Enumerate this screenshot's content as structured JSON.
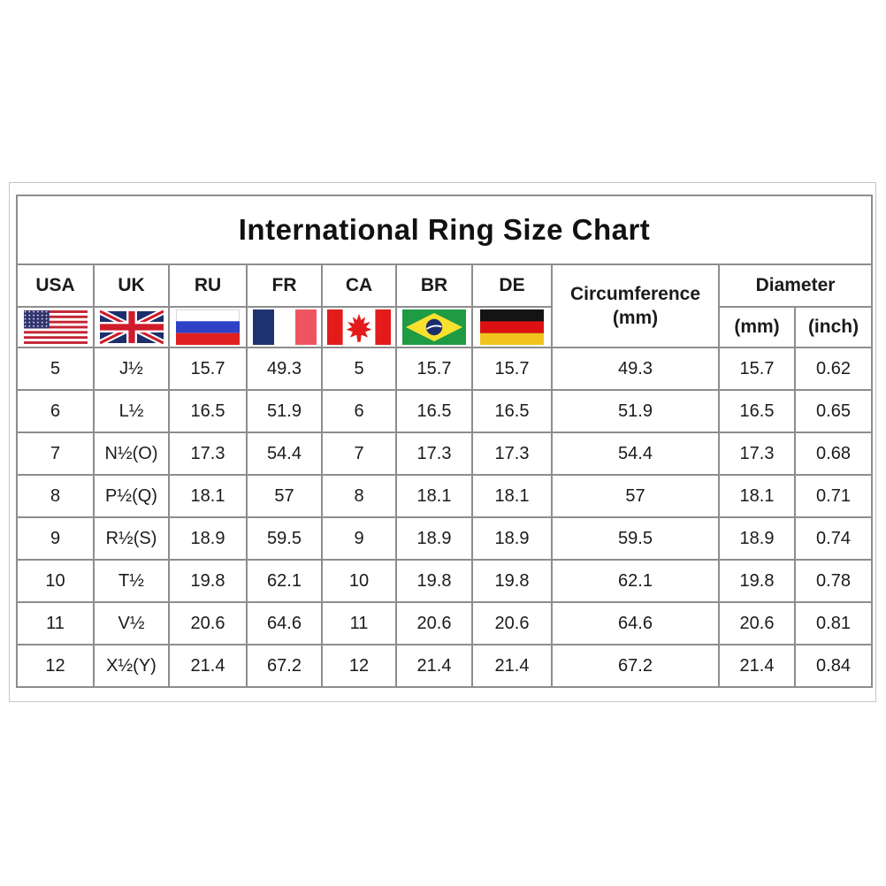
{
  "title": "International Ring Size Chart",
  "header": {
    "countries": [
      "USA",
      "UK",
      "RU",
      "FR",
      "CA",
      "BR",
      "DE"
    ],
    "circumference_line1": "Circumference",
    "circumference_line2": "(mm)",
    "diameter": "Diameter",
    "diameter_mm": "(mm)",
    "diameter_inch": "(inch)"
  },
  "icons": {
    "flags": [
      "usa-flag-icon",
      "uk-flag-icon",
      "russia-flag-icon",
      "france-flag-icon",
      "canada-flag-icon",
      "brazil-flag-icon",
      "germany-flag-icon"
    ]
  },
  "colors": {
    "background": "#ffffff",
    "outer_frame_border": "#c6c6c6",
    "grid_border": "#8d8d8d",
    "text": "#1b1b1b"
  },
  "chart_data": {
    "type": "table",
    "title": "International Ring Size Chart",
    "columns": [
      "USA",
      "UK",
      "RU",
      "FR",
      "CA",
      "BR",
      "DE",
      "Circumference (mm)",
      "Diameter (mm)",
      "Diameter (inch)"
    ],
    "rows": [
      [
        "5",
        "J½",
        "15.7",
        "49.3",
        "5",
        "15.7",
        "15.7",
        "49.3",
        "15.7",
        "0.62"
      ],
      [
        "6",
        "L½",
        "16.5",
        "51.9",
        "6",
        "16.5",
        "16.5",
        "51.9",
        "16.5",
        "0.65"
      ],
      [
        "7",
        "N½(O)",
        "17.3",
        "54.4",
        "7",
        "17.3",
        "17.3",
        "54.4",
        "17.3",
        "0.68"
      ],
      [
        "8",
        "P½(Q)",
        "18.1",
        "57",
        "8",
        "18.1",
        "18.1",
        "57",
        "18.1",
        "0.71"
      ],
      [
        "9",
        "R½(S)",
        "18.9",
        "59.5",
        "9",
        "18.9",
        "18.9",
        "59.5",
        "18.9",
        "0.74"
      ],
      [
        "10",
        "T½",
        "19.8",
        "62.1",
        "10",
        "19.8",
        "19.8",
        "62.1",
        "19.8",
        "0.78"
      ],
      [
        "11",
        "V½",
        "20.6",
        "64.6",
        "11",
        "20.6",
        "20.6",
        "64.6",
        "20.6",
        "0.81"
      ],
      [
        "12",
        "X½(Y)",
        "21.4",
        "67.2",
        "12",
        "21.4",
        "21.4",
        "67.2",
        "21.4",
        "0.84"
      ]
    ]
  }
}
